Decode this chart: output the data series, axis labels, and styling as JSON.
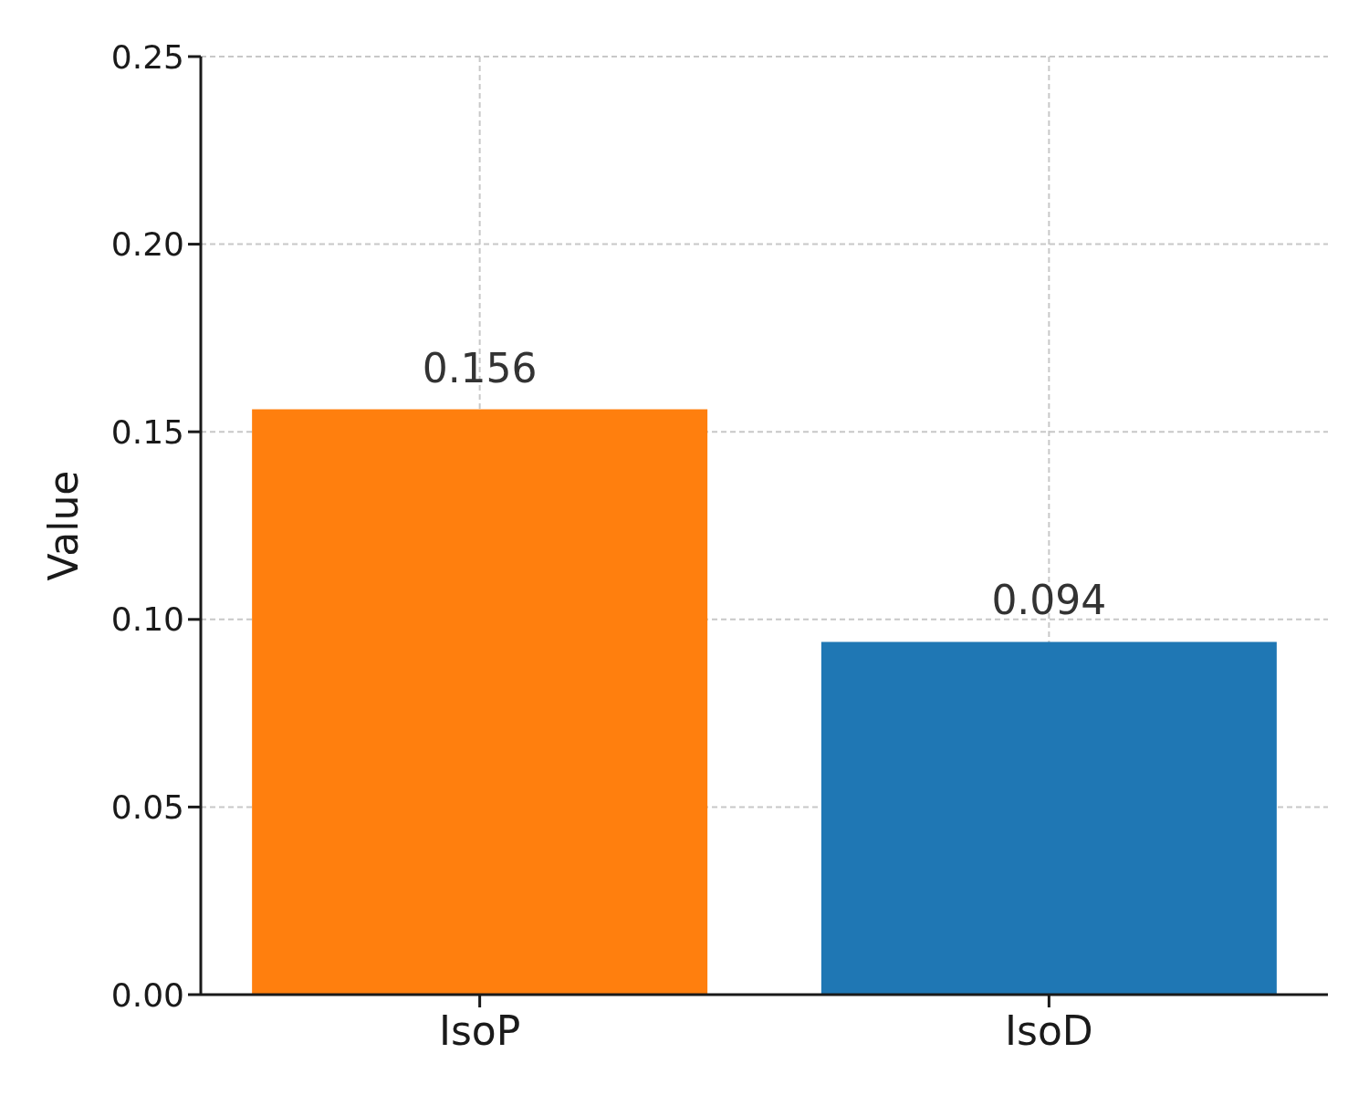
{
  "chart_data": {
    "type": "bar",
    "ylabel": "Value",
    "categories": [
      "IsoP",
      "IsoD"
    ],
    "values": [
      0.156,
      0.094
    ],
    "colors": [
      "#ff7f0e",
      "#1f77b4"
    ],
    "ylim": [
      0,
      0.25
    ],
    "yticks": [
      {
        "value": 0,
        "label": "0.00"
      },
      {
        "value": 0.05,
        "label": "0.05"
      },
      {
        "value": 0.1,
        "label": "0.10"
      },
      {
        "value": 0.15,
        "label": "0.15"
      },
      {
        "value": 0.2,
        "label": "0.20"
      },
      {
        "value": 0.25,
        "label": "0.25"
      }
    ],
    "grid": true,
    "data_labels": true
  }
}
